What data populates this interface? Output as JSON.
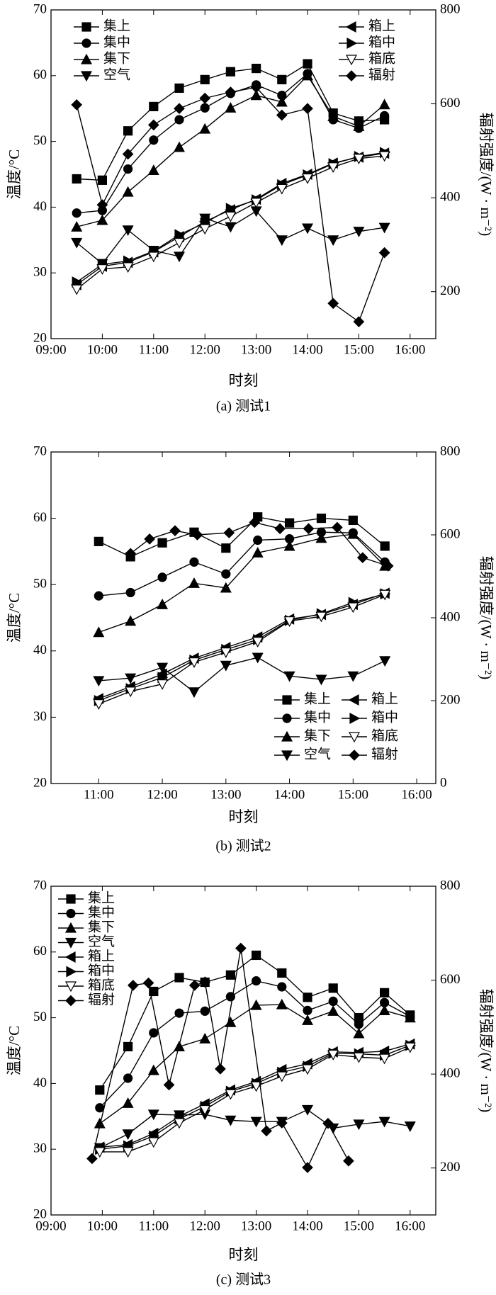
{
  "chart_data": [
    {
      "type": "line",
      "caption": "(a) 测试1",
      "xlabel": "时刻",
      "ylabel": "温度/°C",
      "y2label": "辐射强度/(W · m⁻²)",
      "legend": "split",
      "x": [
        9.5,
        10,
        10.5,
        11,
        11.5,
        12,
        12.5,
        13,
        13.5,
        14,
        14.5,
        15,
        15.5
      ],
      "xlim": [
        9,
        16.5
      ],
      "xticks": [
        {
          "value": 9,
          "label": "09:00"
        },
        {
          "value": 10,
          "label": "10:00"
        },
        {
          "value": 11,
          "label": "11:00"
        },
        {
          "value": 12,
          "label": "12:00"
        },
        {
          "value": 13,
          "label": "13:00"
        },
        {
          "value": 14,
          "label": "14:00"
        },
        {
          "value": 15,
          "label": "15:00"
        },
        {
          "value": 16,
          "label": "16:00"
        }
      ],
      "ylim": [
        20,
        70
      ],
      "yticks": [
        20,
        30,
        40,
        50,
        60,
        70
      ],
      "y2lim": [
        100,
        800
      ],
      "y2ticks": [
        200,
        400,
        600,
        800
      ],
      "series": [
        {
          "name": "集上",
          "marker": "square",
          "color": "#000",
          "values": [
            44.3,
            44.1,
            51.6,
            55.3,
            58.1,
            59.4,
            60.6,
            61.1,
            59.4,
            61.8,
            54.3,
            53.1,
            53.3
          ]
        },
        {
          "name": "集中",
          "marker": "circle",
          "color": "#000",
          "values": [
            39.1,
            39.5,
            45.8,
            50.2,
            53.3,
            55.1,
            57.3,
            58.6,
            57.0,
            60.3,
            53.3,
            52.0,
            53.9
          ]
        },
        {
          "name": "集下",
          "marker": "up",
          "color": "#000",
          "values": [
            37.0,
            38.0,
            42.3,
            45.6,
            49.1,
            51.9,
            55.1,
            57.0,
            56.0,
            60.0,
            53.8,
            52.3,
            55.6
          ]
        },
        {
          "name": "空气",
          "marker": "down",
          "color": "#000",
          "values": [
            34.6,
            31.4,
            36.5,
            33.4,
            32.5,
            38.3,
            37.0,
            39.4,
            35.0,
            36.8,
            35.0,
            36.3,
            36.9
          ]
        },
        {
          "name": "箱上",
          "marker": "left",
          "color": "#000",
          "values": [
            28.2,
            31.0,
            31.6,
            33.2,
            35.5,
            37.8,
            39.6,
            41.2,
            43.6,
            45.0,
            46.7,
            47.6,
            48.2
          ]
        },
        {
          "name": "箱中",
          "marker": "right",
          "color": "#000",
          "values": [
            28.6,
            31.3,
            31.8,
            33.3,
            35.8,
            37.6,
            39.8,
            41.1,
            43.4,
            44.9,
            46.6,
            47.7,
            48.3
          ]
        },
        {
          "name": "箱底",
          "marker": "opendown",
          "color": "#000",
          "values": [
            27.5,
            30.6,
            30.9,
            32.5,
            34.6,
            36.7,
            38.6,
            40.7,
            42.8,
            44.4,
            46.1,
            47.4,
            47.8
          ]
        },
        {
          "name": "辐射",
          "marker": "diamond",
          "color": "#000",
          "axis": "y2",
          "values": [
            598,
            385,
            493,
            555,
            590,
            612,
            625,
            635,
            576,
            590,
            175,
            136,
            283
          ]
        }
      ]
    },
    {
      "type": "line",
      "caption": "(b) 测试2",
      "xlabel": "时刻",
      "ylabel": "温度/°C",
      "y2label": "辐射强度/(W · m⁻²)",
      "legend": "lower right",
      "x": [
        11,
        11.5,
        12,
        12.5,
        13,
        13.5,
        14,
        14.5,
        15,
        15.5
      ],
      "xlim": [
        10.25,
        16.3
      ],
      "xticks": [
        {
          "value": 11,
          "label": "11:00"
        },
        {
          "value": 12,
          "label": "12:00"
        },
        {
          "value": 13,
          "label": "13:00"
        },
        {
          "value": 14,
          "label": "14:00"
        },
        {
          "value": 15,
          "label": "15:00"
        },
        {
          "value": 16,
          "label": "16:00"
        }
      ],
      "ylim": [
        20,
        70
      ],
      "yticks": [
        20,
        30,
        40,
        50,
        60,
        70
      ],
      "y2lim": [
        0,
        800
      ],
      "y2ticks": [
        0,
        200,
        400,
        600,
        800
      ],
      "series": [
        {
          "name": "集上",
          "marker": "square",
          "color": "#000",
          "values": [
            56.5,
            54.2,
            56.3,
            57.9,
            55.5,
            60.2,
            59.3,
            60.0,
            59.7,
            55.8
          ]
        },
        {
          "name": "集中",
          "marker": "circle",
          "color": "#000",
          "values": [
            48.3,
            48.8,
            51.1,
            53.4,
            51.6,
            56.7,
            56.9,
            57.9,
            57.8,
            53.4
          ]
        },
        {
          "name": "集下",
          "marker": "up",
          "color": "#000",
          "values": [
            42.8,
            44.5,
            47.0,
            50.2,
            49.5,
            54.8,
            55.8,
            57.0,
            57.6,
            52.8
          ]
        },
        {
          "name": "空气",
          "marker": "down",
          "color": "#000",
          "values": [
            35.5,
            35.9,
            37.5,
            33.8,
            37.8,
            39.0,
            36.2,
            35.7,
            36.2,
            38.5
          ]
        },
        {
          "name": "箱上",
          "marker": "left",
          "color": "#000",
          "values": [
            32.8,
            34.6,
            36.5,
            38.9,
            40.5,
            42.1,
            44.8,
            45.5,
            47.0,
            48.7
          ]
        },
        {
          "name": "箱中",
          "marker": "right",
          "color": "#000",
          "values": [
            32.5,
            34.3,
            36.0,
            38.6,
            40.2,
            41.7,
            44.6,
            45.6,
            47.3,
            48.6
          ]
        },
        {
          "name": "箱底",
          "marker": "opendown",
          "color": "#000",
          "values": [
            32.0,
            33.9,
            35.0,
            38.3,
            39.8,
            41.4,
            44.5,
            45.2,
            46.6,
            48.5
          ]
        },
        {
          "name": "辐射",
          "marker": "diamond",
          "color": "#000",
          "axis": "y2",
          "x": [
            11.5,
            11.8,
            12.2,
            12.55,
            13.05,
            13.45,
            13.85,
            14.3,
            14.75,
            15.15,
            15.55
          ],
          "values": [
            555,
            590,
            610,
            600,
            605,
            630,
            615,
            615,
            618,
            545,
            525
          ]
        }
      ]
    },
    {
      "type": "line",
      "caption": "(c) 测试3",
      "xlabel": "时刻",
      "ylabel": "温度/°C",
      "y2label": "辐射强度/(W · m⁻²)",
      "legend": "upper left",
      "x": [
        9.95,
        10.5,
        11,
        11.5,
        12,
        12.5,
        13,
        13.5,
        14,
        14.5,
        15,
        15.5,
        16
      ],
      "xlim": [
        9,
        16.5
      ],
      "xticks": [
        {
          "value": 9,
          "label": "09:00"
        },
        {
          "value": 10,
          "label": "10:00"
        },
        {
          "value": 11,
          "label": "11:00"
        },
        {
          "value": 12,
          "label": "12:00"
        },
        {
          "value": 13,
          "label": "13:00"
        },
        {
          "value": 14,
          "label": "14:00"
        },
        {
          "value": 15,
          "label": "15:00"
        },
        {
          "value": 16,
          "label": "16:00"
        }
      ],
      "ylim": [
        20,
        70
      ],
      "yticks": [
        20,
        30,
        40,
        50,
        60,
        70
      ],
      "y2lim": [
        100,
        800
      ],
      "y2ticks": [
        200,
        400,
        600,
        800
      ],
      "series": [
        {
          "name": "集上",
          "marker": "square",
          "color": "#000",
          "values": [
            39.0,
            45.6,
            54.0,
            56.1,
            55.4,
            56.5,
            59.5,
            56.8,
            53.1,
            54.5,
            50.0,
            53.8,
            50.4
          ]
        },
        {
          "name": "集中",
          "marker": "circle",
          "color": "#000",
          "values": [
            36.3,
            40.8,
            47.7,
            50.7,
            51.0,
            53.2,
            55.6,
            54.7,
            51.1,
            52.5,
            49.0,
            52.3,
            50.2
          ]
        },
        {
          "name": "集下",
          "marker": "up",
          "color": "#000",
          "values": [
            33.9,
            37.0,
            42.0,
            45.6,
            46.8,
            49.3,
            51.9,
            52.0,
            49.6,
            51.0,
            47.6,
            51.1,
            50.0
          ]
        },
        {
          "name": "空气",
          "marker": "down",
          "color": "#000",
          "values": [
            30.2,
            32.3,
            35.3,
            35.2,
            35.3,
            34.4,
            34.2,
            34.2,
            36.0,
            33.2,
            33.8,
            34.2,
            33.5
          ]
        },
        {
          "name": "箱上",
          "marker": "left",
          "color": "#000",
          "values": [
            30.3,
            30.7,
            32.4,
            35.0,
            36.9,
            39.0,
            40.3,
            42.1,
            43.0,
            44.8,
            44.7,
            44.9,
            46.0
          ]
        },
        {
          "name": "箱中",
          "marker": "right",
          "color": "#000",
          "values": [
            30.0,
            30.5,
            32.0,
            34.6,
            36.5,
            38.8,
            40.0,
            41.7,
            42.6,
            44.6,
            44.5,
            44.3,
            45.8
          ]
        },
        {
          "name": "箱底",
          "marker": "opendown",
          "color": "#000",
          "values": [
            29.6,
            29.6,
            31.1,
            34.0,
            36.0,
            38.4,
            39.6,
            41.1,
            42.2,
            44.4,
            44.0,
            43.8,
            45.5
          ]
        },
        {
          "name": "辐射",
          "marker": "diamond",
          "color": "#000",
          "axis": "y2",
          "x": [
            9.8,
            10.6,
            10.9,
            11.3,
            11.8,
            12.0,
            12.3,
            12.7,
            13.2,
            13.5,
            14.0,
            14.4,
            14.8
          ],
          "values": [
            220,
            589,
            594,
            377,
            589,
            596,
            411,
            668,
            279,
            296,
            201,
            295,
            215
          ]
        }
      ]
    }
  ]
}
